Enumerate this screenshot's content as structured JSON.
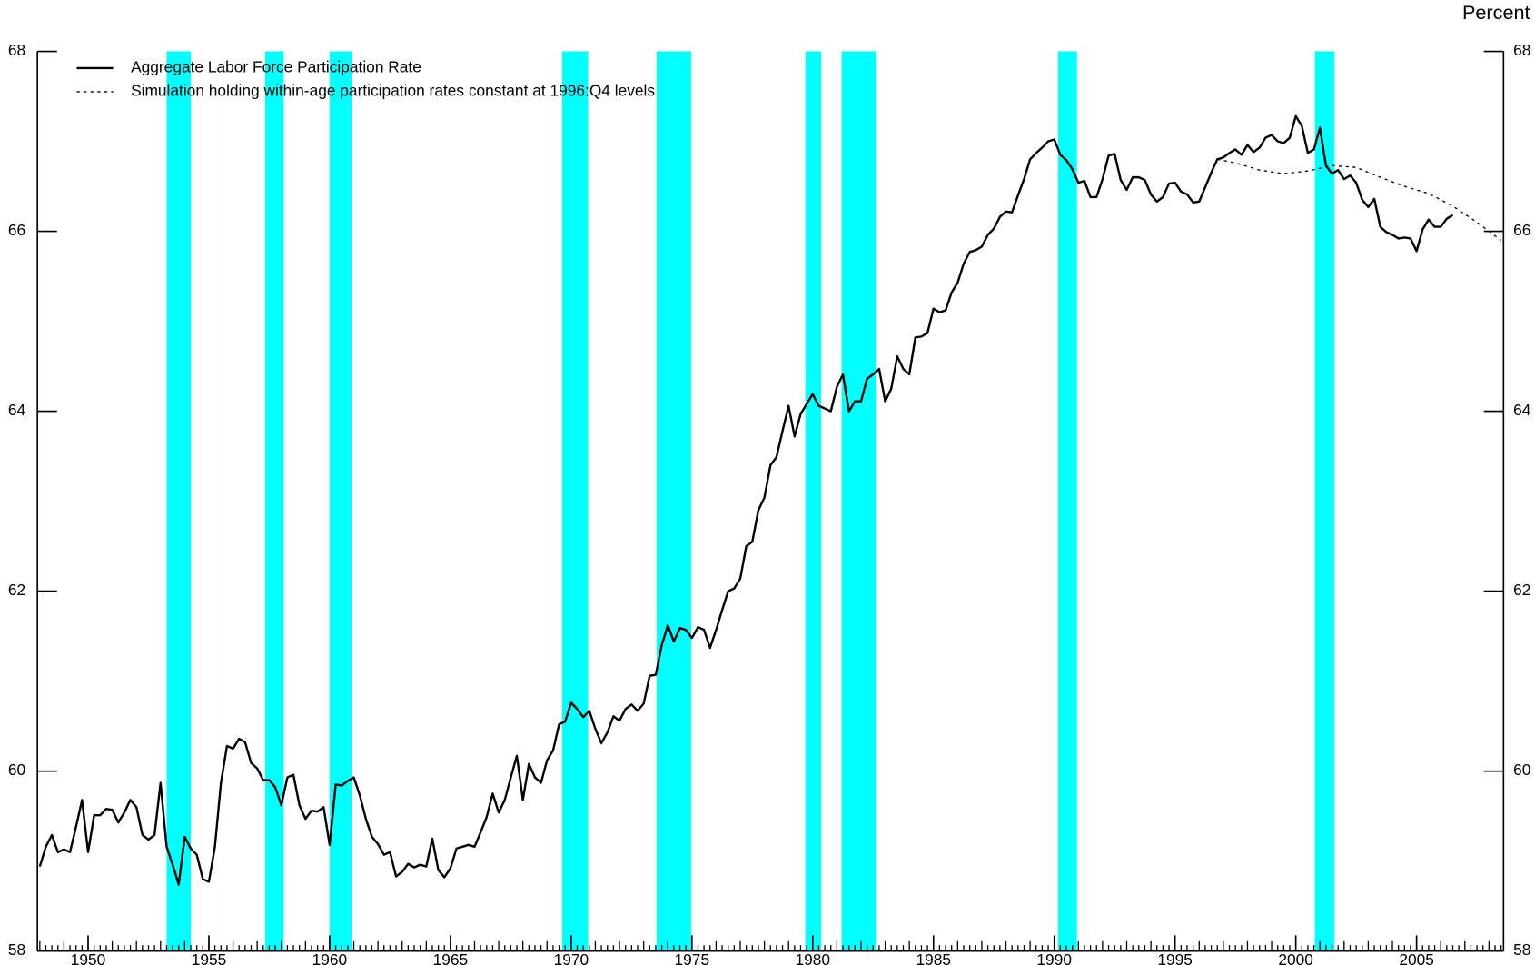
{
  "chart_data": {
    "type": "line",
    "y_label": "Percent",
    "xlim": [
      1947.9,
      2008.6
    ],
    "xticks": [
      1950,
      1955,
      1960,
      1965,
      1970,
      1975,
      1980,
      1985,
      1990,
      1995,
      2000,
      2005
    ],
    "ylim": [
      58,
      68
    ],
    "yticks": [
      58,
      60,
      62,
      64,
      66,
      68
    ],
    "shade_color": "#00ffff",
    "shaded_periods": [
      [
        1953.25,
        1954.25
      ],
      [
        1957.33,
        1958.1
      ],
      [
        1960.0,
        1960.92
      ],
      [
        1969.63,
        1970.7
      ],
      [
        1973.54,
        1974.97
      ],
      [
        1979.7,
        1980.35
      ],
      [
        1981.2,
        1982.63
      ],
      [
        1990.16,
        1990.94
      ],
      [
        2000.79,
        2001.6
      ]
    ],
    "series": [
      {
        "name": "Aggregate Labor Force Participation Rate",
        "color": "#000000",
        "dash": "solid",
        "x": [
          1948,
          1948.25,
          1948.5,
          1948.75,
          1949,
          1949.25,
          1949.5,
          1949.75,
          1950,
          1950.25,
          1950.5,
          1950.75,
          1951,
          1951.25,
          1951.5,
          1951.75,
          1952,
          1952.25,
          1952.5,
          1952.75,
          1953,
          1953.25,
          1953.5,
          1953.75,
          1954,
          1954.25,
          1954.5,
          1954.75,
          1955,
          1955.25,
          1955.5,
          1955.75,
          1956,
          1956.25,
          1956.5,
          1956.75,
          1957,
          1957.25,
          1957.5,
          1957.75,
          1958,
          1958.25,
          1958.5,
          1958.75,
          1959,
          1959.25,
          1959.5,
          1959.75,
          1960,
          1960.25,
          1960.5,
          1960.75,
          1961,
          1961.25,
          1961.5,
          1961.75,
          1962,
          1962.25,
          1962.5,
          1962.75,
          1963,
          1963.25,
          1963.5,
          1963.75,
          1964,
          1964.25,
          1964.5,
          1964.75,
          1965,
          1965.25,
          1965.5,
          1965.75,
          1966,
          1966.25,
          1966.5,
          1966.75,
          1967,
          1967.25,
          1967.5,
          1967.75,
          1968,
          1968.25,
          1968.5,
          1968.75,
          1969,
          1969.25,
          1969.5,
          1969.75,
          1970,
          1970.25,
          1970.5,
          1970.75,
          1971,
          1971.25,
          1971.5,
          1971.75,
          1972,
          1972.25,
          1972.5,
          1972.75,
          1973,
          1973.25,
          1973.5,
          1973.75,
          1974,
          1974.25,
          1974.5,
          1974.75,
          1975,
          1975.25,
          1975.5,
          1975.75,
          1976,
          1976.25,
          1976.5,
          1976.75,
          1977,
          1977.25,
          1977.5,
          1977.75,
          1978,
          1978.25,
          1978.5,
          1978.75,
          1979,
          1979.25,
          1979.5,
          1979.75,
          1980,
          1980.25,
          1980.5,
          1980.75,
          1981,
          1981.25,
          1981.5,
          1981.75,
          1982,
          1982.25,
          1982.5,
          1982.75,
          1983,
          1983.25,
          1983.5,
          1983.75,
          1984,
          1984.25,
          1984.5,
          1984.75,
          1985,
          1985.25,
          1985.5,
          1985.75,
          1986,
          1986.25,
          1986.5,
          1986.75,
          1987,
          1987.25,
          1987.5,
          1987.75,
          1988,
          1988.25,
          1988.5,
          1988.75,
          1989,
          1989.25,
          1989.5,
          1989.75,
          1990,
          1990.25,
          1990.5,
          1990.75,
          1991,
          1991.25,
          1991.5,
          1991.75,
          1992,
          1992.25,
          1992.5,
          1992.75,
          1993,
          1993.25,
          1993.5,
          1993.75,
          1994,
          1994.25,
          1994.5,
          1994.75,
          1995,
          1995.25,
          1995.5,
          1995.75,
          1996,
          1996.25,
          1996.5,
          1996.75,
          1997,
          1997.25,
          1997.5,
          1997.75,
          1998,
          1998.25,
          1998.5,
          1998.75,
          1999,
          1999.25,
          1999.5,
          1999.75,
          2000,
          2000.25,
          2000.5,
          2000.75,
          2001,
          2001.25,
          2001.5,
          2001.75,
          2002,
          2002.25,
          2002.5,
          2002.75,
          2003,
          2003.25,
          2003.5,
          2003.75,
          2004,
          2004.25,
          2004.5,
          2004.75,
          2005,
          2005.25,
          2005.5,
          2005.75,
          2006,
          2006.25,
          2006.5
        ],
        "values": [
          58.94,
          59.16,
          59.29,
          59.1,
          59.13,
          59.1,
          59.38,
          59.68,
          59.1,
          59.51,
          59.51,
          59.58,
          59.57,
          59.43,
          59.54,
          59.68,
          59.6,
          59.29,
          59.24,
          59.29,
          59.87,
          59.16,
          58.96,
          58.74,
          59.27,
          59.14,
          59.07,
          58.8,
          58.77,
          59.16,
          59.87,
          60.28,
          60.25,
          60.36,
          60.32,
          60.09,
          60.03,
          59.9,
          59.9,
          59.82,
          59.62,
          59.93,
          59.96,
          59.62,
          59.47,
          59.56,
          59.55,
          59.6,
          59.18,
          59.85,
          59.84,
          59.89,
          59.93,
          59.73,
          59.47,
          59.27,
          59.19,
          59.07,
          59.1,
          58.83,
          58.88,
          58.97,
          58.93,
          58.96,
          58.94,
          59.25,
          58.9,
          58.82,
          58.92,
          59.14,
          59.16,
          59.18,
          59.16,
          59.32,
          59.49,
          59.75,
          59.54,
          59.68,
          59.93,
          60.17,
          59.68,
          60.08,
          59.93,
          59.87,
          60.12,
          60.23,
          60.52,
          60.55,
          60.76,
          60.69,
          60.6,
          60.67,
          60.47,
          60.31,
          60.43,
          60.61,
          60.56,
          60.69,
          60.74,
          60.67,
          60.75,
          61.06,
          61.07,
          61.4,
          61.62,
          61.44,
          61.59,
          61.57,
          61.48,
          61.6,
          61.57,
          61.37,
          61.57,
          61.79,
          62.0,
          62.03,
          62.14,
          62.5,
          62.55,
          62.9,
          63.04,
          63.4,
          63.49,
          63.78,
          64.06,
          63.72,
          63.97,
          64.08,
          64.19,
          64.06,
          64.03,
          64.0,
          64.27,
          64.41,
          64.0,
          64.11,
          64.11,
          64.36,
          64.41,
          64.47,
          64.11,
          64.25,
          64.61,
          64.47,
          64.41,
          64.82,
          64.83,
          64.87,
          65.14,
          65.1,
          65.12,
          65.32,
          65.43,
          65.64,
          65.77,
          65.79,
          65.83,
          65.96,
          66.03,
          66.16,
          66.22,
          66.21,
          66.4,
          66.58,
          66.8,
          66.87,
          66.93,
          67.0,
          67.02,
          66.85,
          66.79,
          66.69,
          66.54,
          66.56,
          66.38,
          66.38,
          66.58,
          66.84,
          66.86,
          66.57,
          66.46,
          66.6,
          66.6,
          66.57,
          66.41,
          66.33,
          66.38,
          66.53,
          66.54,
          66.44,
          66.41,
          66.32,
          66.33,
          66.49,
          66.65,
          66.8,
          66.82,
          66.87,
          66.91,
          66.85,
          66.96,
          66.88,
          66.93,
          67.04,
          67.07,
          67.0,
          66.98,
          67.04,
          67.28,
          67.17,
          66.87,
          66.91,
          67.15,
          66.73,
          66.64,
          66.68,
          66.58,
          66.62,
          66.54,
          66.35,
          66.27,
          66.36,
          66.05,
          65.99,
          65.96,
          65.92,
          65.93,
          65.92,
          65.78,
          66.02,
          66.13,
          66.05,
          66.05,
          66.14,
          66.18
        ]
      },
      {
        "name": "Simulation holding within-age participation rates constant at 1996:Q4 levels",
        "color": "#000000",
        "dash": "dotted",
        "x": [
          1996.75,
          1997.5,
          1998.5,
          1999.5,
          2000.5,
          2001.5,
          2002.5,
          2003.5,
          2004.5,
          2005.5,
          2006.5,
          2007.5,
          2008.5
        ],
        "values": [
          66.8,
          66.76,
          66.68,
          66.64,
          66.67,
          66.73,
          66.71,
          66.6,
          66.5,
          66.42,
          66.28,
          66.1,
          65.9
        ]
      }
    ]
  }
}
